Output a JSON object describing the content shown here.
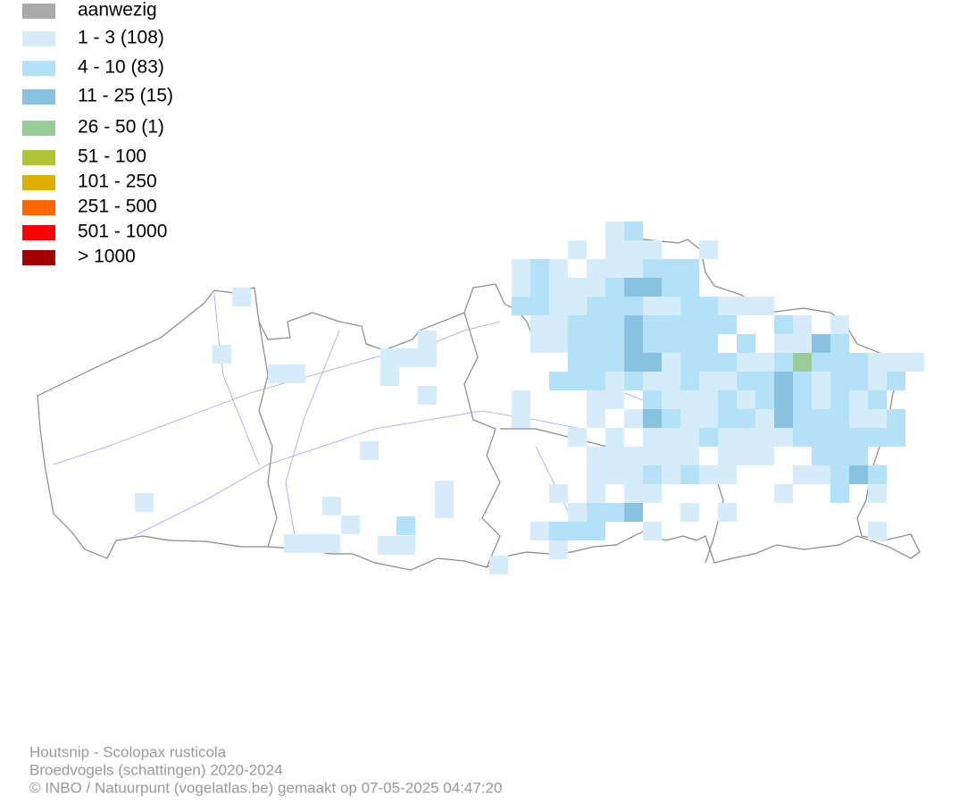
{
  "legend": {
    "items": [
      {
        "label": "aanwezig",
        "color": "#aaaaaa"
      },
      {
        "label": "1 - 3 (108)",
        "color": "#d6ecfa"
      },
      {
        "label": "4 - 10 (83)",
        "color": "#b3e1f7"
      },
      {
        "label": "11 - 25 (15)",
        "color": "#88c2e0"
      },
      {
        "label": "26 - 50 (1)",
        "color": "#99cc99"
      },
      {
        "label": "51 - 100",
        "color": "#b0c334"
      },
      {
        "label": "101 - 250",
        "color": "#e0ae00"
      },
      {
        "label": "251 - 500",
        "color": "#ff6600"
      },
      {
        "label": "501 - 1000",
        "color": "#ff0000"
      },
      {
        "label": "> 1000",
        "color": "#a50000"
      }
    ]
  },
  "footer": {
    "lines": [
      "Houtsnip - Scolopax rusticola",
      "Broedvogels (schattingen) 2020-2024",
      "© INBO / Natuurpunt (vogelatlas.be) gemaakt op 07-05-2025 04:47:20"
    ]
  }
}
